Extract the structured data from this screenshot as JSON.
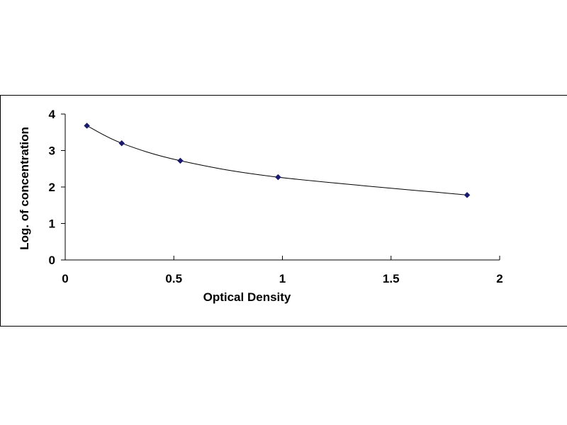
{
  "chart_data": {
    "type": "scatter",
    "title": "",
    "xlabel": "Optical Density",
    "ylabel": "Log. of concentration",
    "xlim": [
      0,
      2
    ],
    "ylim": [
      0,
      4
    ],
    "xticks": [
      "0",
      "0.5",
      "1",
      "1.5",
      "2"
    ],
    "yticks": [
      "0",
      "1",
      "2",
      "3",
      "4"
    ],
    "grid": false,
    "legend": "none",
    "marker": "diamond",
    "line": "smooth",
    "colors": {
      "marker": "#1a1a6e",
      "line": "#000000",
      "axis": "#000000"
    },
    "series": [
      {
        "x": [
          0.1,
          0.26,
          0.53,
          0.98,
          1.85
        ],
        "y": [
          3.68,
          3.2,
          2.72,
          2.27,
          1.78
        ]
      }
    ]
  }
}
